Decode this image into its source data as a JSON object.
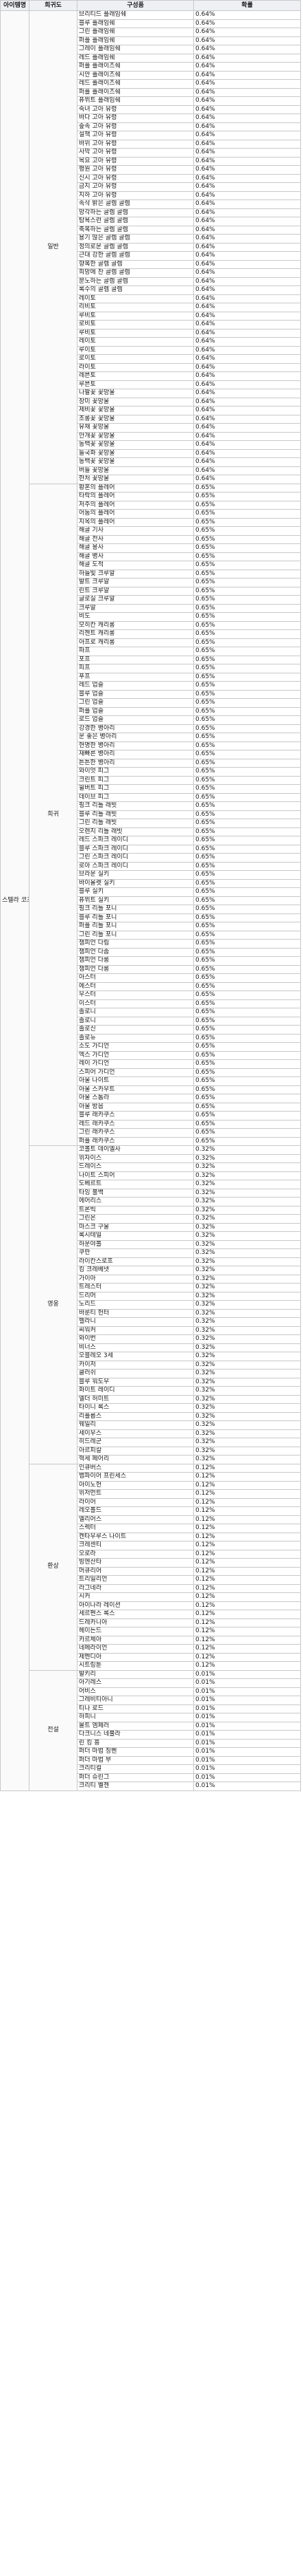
{
  "headers": {
    "item": "아이템명",
    "grade": "희귀도",
    "name": "구성품",
    "prob": "확률"
  },
  "item_name": "스텔라 코즈",
  "groups": [
    {
      "grade": "일반",
      "rows": [
        [
          "브리티드 플래임쉐",
          "0.64%"
        ],
        [
          "블루 플래임쉐",
          "0.64%"
        ],
        [
          "그린 플래임쉐",
          "0.64%"
        ],
        [
          "퍼플 플래임쉐",
          "0.64%"
        ],
        [
          "그레이 플래임쉐",
          "0.64%"
        ],
        [
          "레드 플래임쉐",
          "0.64%"
        ],
        [
          "퍼플 플래이즈쉐",
          "0.64%"
        ],
        [
          "시안 플래이즈쉐",
          "0.64%"
        ],
        [
          "레드 플래이즈쉐",
          "0.64%"
        ],
        [
          "퍼플 플래이즈쉐",
          "0.64%"
        ],
        [
          "퓨뮈트 플래임쉐",
          "0.64%"
        ],
        [
          "숙녀 고아 유령",
          "0.64%"
        ],
        [
          "바다 고아 유령",
          "0.64%"
        ],
        [
          "숲속 고아 유령",
          "0.64%"
        ],
        [
          "설책 고아 유령",
          "0.64%"
        ],
        [
          "바위 고아 유령",
          "0.64%"
        ],
        [
          "사막 고아 유령",
          "0.64%"
        ],
        [
          "목요 고아 유령",
          "0.64%"
        ],
        [
          "평원 고아 유령",
          "0.64%"
        ],
        [
          "신시 고아 유령",
          "0.64%"
        ],
        [
          "금지 고아 유령",
          "0.64%"
        ],
        [
          "지하 고아 유령",
          "0.64%"
        ],
        [
          "속삭 밝은 골렘 골렘",
          "0.64%"
        ],
        [
          "망각하는 골렘 골렘",
          "0.64%"
        ],
        [
          "탐욕스런 골렘 골렘",
          "0.64%"
        ],
        [
          "축복하는 골렘 골렘",
          "0.64%"
        ],
        [
          "용기 많은 골렘 골렘",
          "0.64%"
        ],
        [
          "정의로운 골렘 골렘",
          "0.64%"
        ],
        [
          "근대 강한 골렘 골렘",
          "0.64%"
        ],
        [
          "향복한 골렘 골렘",
          "0.64%"
        ],
        [
          "희망에 찬 골렘 골렘",
          "0.64%"
        ],
        [
          "분노하는 골렘 골렘",
          "0.64%"
        ],
        [
          "록수의 골렘 골렘",
          "0.64%"
        ],
        [
          "레이토",
          "0.64%"
        ],
        [
          "리비토",
          "0.64%"
        ],
        [
          "루비토",
          "0.64%"
        ],
        [
          "로비토",
          "0.64%"
        ],
        [
          "루비토",
          "0.64%"
        ],
        [
          "레이토",
          "0.64%"
        ],
        [
          "루이토",
          "0.64%"
        ],
        [
          "로이토",
          "0.64%"
        ],
        [
          "라이토",
          "0.64%"
        ],
        [
          "레븐토",
          "0.64%"
        ],
        [
          "루븐토",
          "0.64%"
        ],
        [
          "나팔꽃 꽃망울",
          "0.64%"
        ],
        [
          "장미 꽃망울",
          "0.64%"
        ],
        [
          "제비꽃 꽃망울",
          "0.64%"
        ],
        [
          "조롱꽃 꽃망울",
          "0.64%"
        ],
        [
          "유채 꽃망울",
          "0.64%"
        ],
        [
          "안개꽃 꽃망울",
          "0.64%"
        ],
        [
          "동백꽃 꽃망울",
          "0.64%"
        ],
        [
          "들국화 꽃망울",
          "0.64%"
        ],
        [
          "동백꽃 꽃망울",
          "0.64%"
        ],
        [
          "버들 꽃망울",
          "0.64%"
        ],
        [
          "한처 꽃망울",
          "0.64%"
        ]
      ]
    },
    {
      "grade": "희귀",
      "rows": [
        [
          "황혼의 플레어",
          "0.65%"
        ],
        [
          "타락의 플레어",
          "0.65%"
        ],
        [
          "저주의 플레어",
          "0.65%"
        ],
        [
          "어둠의 플레어",
          "0.65%"
        ],
        [
          "지옥의 플레어",
          "0.65%"
        ],
        [
          "해골 기사",
          "0.65%"
        ],
        [
          "해골 전사",
          "0.65%"
        ],
        [
          "해골 용사",
          "0.65%"
        ],
        [
          "해골 병사",
          "0.65%"
        ],
        [
          "해골 도적",
          "0.65%"
        ],
        [
          "하늘빛 크루알",
          "0.65%"
        ],
        [
          "발트 크루알",
          "0.65%"
        ],
        [
          "린트 크루알",
          "0.65%"
        ],
        [
          "글로실 크루알",
          "0.65%"
        ],
        [
          "크루알",
          "0.65%"
        ],
        [
          "비도",
          "0.65%"
        ],
        [
          "모히칸 캐리롱",
          "0.65%"
        ],
        [
          "리젠트 캐리롱",
          "0.65%"
        ],
        [
          "아프로 캐리롱",
          "0.65%"
        ],
        [
          "파프",
          "0.65%"
        ],
        [
          "포프",
          "0.65%"
        ],
        [
          "피프",
          "0.65%"
        ],
        [
          "푸프",
          "0.65%"
        ],
        [
          "레드 업슬",
          "0.65%"
        ],
        [
          "블루 업슬",
          "0.65%"
        ],
        [
          "그린 업슬",
          "0.65%"
        ],
        [
          "퍼플 업슬",
          "0.65%"
        ],
        [
          "로드 업슬",
          "0.65%"
        ],
        [
          "강경한 병아리",
          "0.65%"
        ],
        [
          "운 좋은 병아리",
          "0.65%"
        ],
        [
          "현명한 병아리",
          "0.65%"
        ],
        [
          "재빠른 병아리",
          "0.65%"
        ],
        [
          "튼튼한 병아리",
          "0.65%"
        ],
        [
          "와이엇 피그",
          "0.65%"
        ],
        [
          "크린트 피그",
          "0.65%"
        ],
        [
          "윌버트 피그",
          "0.65%"
        ],
        [
          "데이브 피그",
          "0.65%"
        ],
        [
          "핑크 리틀 래빗",
          "0.65%"
        ],
        [
          "블루 리틀 래빗",
          "0.65%"
        ],
        [
          "그린 리틀 래빗",
          "0.65%"
        ],
        [
          "오렌지 리틀 래빗",
          "0.65%"
        ],
        [
          "레드 스파크 레이디",
          "0.65%"
        ],
        [
          "블루 스파크 레이디",
          "0.65%"
        ],
        [
          "그린 스파크 레이디",
          "0.65%"
        ],
        [
          "로아 스파크 레이디",
          "0.65%"
        ],
        [
          "브라운 실키",
          "0.65%"
        ],
        [
          "바이올렛 실키",
          "0.65%"
        ],
        [
          "블루 실키",
          "0.65%"
        ],
        [
          "퓨뮈트 실키",
          "0.65%"
        ],
        [
          "핑크 리틀 포니",
          "0.65%"
        ],
        [
          "블루 리틀 포니",
          "0.65%"
        ],
        [
          "퍼플 리틀 포니",
          "0.65%"
        ],
        [
          "그린 리틀 포니",
          "0.65%"
        ],
        [
          "챔피언 다림",
          "0.65%"
        ],
        [
          "챔피언 다솜",
          "0.65%"
        ],
        [
          "챔피언 다롱",
          "0.65%"
        ],
        [
          "챔피언 다롱",
          "0.65%"
        ],
        [
          "아스터",
          "0.65%"
        ],
        [
          "에스터",
          "0.65%"
        ],
        [
          "우스터",
          "0.65%"
        ],
        [
          "이스터",
          "0.65%"
        ],
        [
          "졸로니",
          "0.65%"
        ],
        [
          "졸로니",
          "0.65%"
        ],
        [
          "졸로신",
          "0.65%"
        ],
        [
          "졸로뉴",
          "0.65%"
        ],
        [
          "소도 가디언",
          "0.65%"
        ],
        [
          "엑스 가디언",
          "0.65%"
        ],
        [
          "레이 가디언",
          "0.65%"
        ],
        [
          "스피어 가디언",
          "0.65%"
        ],
        [
          "아울 나이트",
          "0.65%"
        ],
        [
          "아울 스카우트",
          "0.65%"
        ],
        [
          "아울 스톰라",
          "0.65%"
        ],
        [
          "아울 방읍",
          "0.65%"
        ],
        [
          "블루 래카쿠스",
          "0.65%"
        ],
        [
          "레드 래카쿠스",
          "0.65%"
        ],
        [
          "그린 래카쿠스",
          "0.65%"
        ],
        [
          "퍼플 래카쿠스",
          "0.65%"
        ]
      ]
    },
    {
      "grade": "영웅",
      "rows": [
        [
          "코볼트 데이엘사",
          "0.32%"
        ],
        [
          "위자이스",
          "0.32%"
        ],
        [
          "드레이스",
          "0.32%"
        ],
        [
          "나이트 스피어",
          "0.32%"
        ],
        [
          "도베르트",
          "0.32%"
        ],
        [
          "타잉 불백",
          "0.32%"
        ],
        [
          "에어리스",
          "0.32%"
        ],
        [
          "트론빅",
          "0.32%"
        ],
        [
          "그린온",
          "0.32%"
        ],
        [
          "마스크 구울",
          "0.32%"
        ],
        [
          "록시테일",
          "0.32%"
        ],
        [
          "하운야볼",
          "0.32%"
        ],
        [
          "쿠란",
          "0.32%"
        ],
        [
          "라이칸스로프",
          "0.32%"
        ],
        [
          "킹 크레베넷",
          "0.32%"
        ],
        [
          "가이아",
          "0.32%"
        ],
        [
          "트레스터",
          "0.32%"
        ],
        [
          "드리머",
          "0.32%"
        ],
        [
          "노리드",
          "0.32%"
        ],
        [
          "바룬티 헌터",
          "0.32%"
        ],
        [
          "헬라니",
          "0.32%"
        ],
        [
          "씨워커",
          "0.32%"
        ],
        [
          "와이번",
          "0.32%"
        ],
        [
          "비너스",
          "0.32%"
        ],
        [
          "오블레오 3세",
          "0.32%"
        ],
        [
          "카이저",
          "0.32%"
        ],
        [
          "클러쉬",
          "0.32%"
        ],
        [
          "블루 워도우",
          "0.32%"
        ],
        [
          "화이트 레이디",
          "0.32%"
        ],
        [
          "엘더 허미트",
          "0.32%"
        ],
        [
          "타이니 록스",
          "0.32%"
        ],
        [
          "리플롭스",
          "0.32%"
        ],
        [
          "웨일리",
          "0.32%"
        ],
        [
          "세이우스",
          "0.32%"
        ],
        [
          "히드레군",
          "0.32%"
        ],
        [
          "아르피칼",
          "0.32%"
        ],
        [
          "혁세 페어리",
          "0.32%"
        ]
      ]
    },
    {
      "grade": "환상",
      "rows": [
        [
          "인큐버스",
          "0.12%"
        ],
        [
          "뱀파이어 프린세스",
          "0.12%"
        ],
        [
          "아이노헌",
          "0.12%"
        ],
        [
          "위저먼트",
          "0.12%"
        ],
        [
          "라이어",
          "0.12%"
        ],
        [
          "레오볼드",
          "0.12%"
        ],
        [
          "엘리어스",
          "0.12%"
        ],
        [
          "스렉터",
          "0.12%"
        ],
        [
          "켄타우루스 나이트",
          "0.12%"
        ],
        [
          "크레센티",
          "0.12%"
        ],
        [
          "오로라",
          "0.12%"
        ],
        [
          "빙엔산타",
          "0.12%"
        ],
        [
          "머큐리어",
          "0.12%"
        ],
        [
          "트리일리언",
          "0.12%"
        ],
        [
          "라그네라",
          "0.12%"
        ],
        [
          "시커",
          "0.12%"
        ],
        [
          "아이나라 레이션",
          "0.12%"
        ],
        [
          "세르펜스 록스",
          "0.12%"
        ],
        [
          "드레카니아",
          "0.12%"
        ],
        [
          "헤이든드",
          "0.12%"
        ],
        [
          "카르체아",
          "0.12%"
        ],
        [
          "네메라이언",
          "0.12%"
        ],
        [
          "제멘디아",
          "0.12%"
        ],
        [
          "시트링툰",
          "0.12%"
        ]
      ]
    },
    {
      "grade": "전설",
      "rows": [
        [
          "발키리",
          "0.01%"
        ],
        [
          "아기레스",
          "0.01%"
        ],
        [
          "어비스",
          "0.01%"
        ],
        [
          "그레비티아니",
          "0.01%"
        ],
        [
          "티나 로드",
          "0.01%"
        ],
        [
          "하피니",
          "0.01%"
        ],
        [
          "몰트 엠페러",
          "0.01%"
        ],
        [
          "다크니스 네뷸라",
          "0.01%"
        ],
        [
          "린 킹 흥",
          "0.01%"
        ],
        [
          "퍼더 마법 징벤",
          "0.01%"
        ],
        [
          "퍼더 마법 부",
          "0.01%"
        ],
        [
          "크리티컬",
          "0.01%"
        ],
        [
          "퍼더 슈린그",
          "0.01%"
        ],
        [
          "크리티 벨젠",
          "0.01%"
        ]
      ]
    }
  ]
}
